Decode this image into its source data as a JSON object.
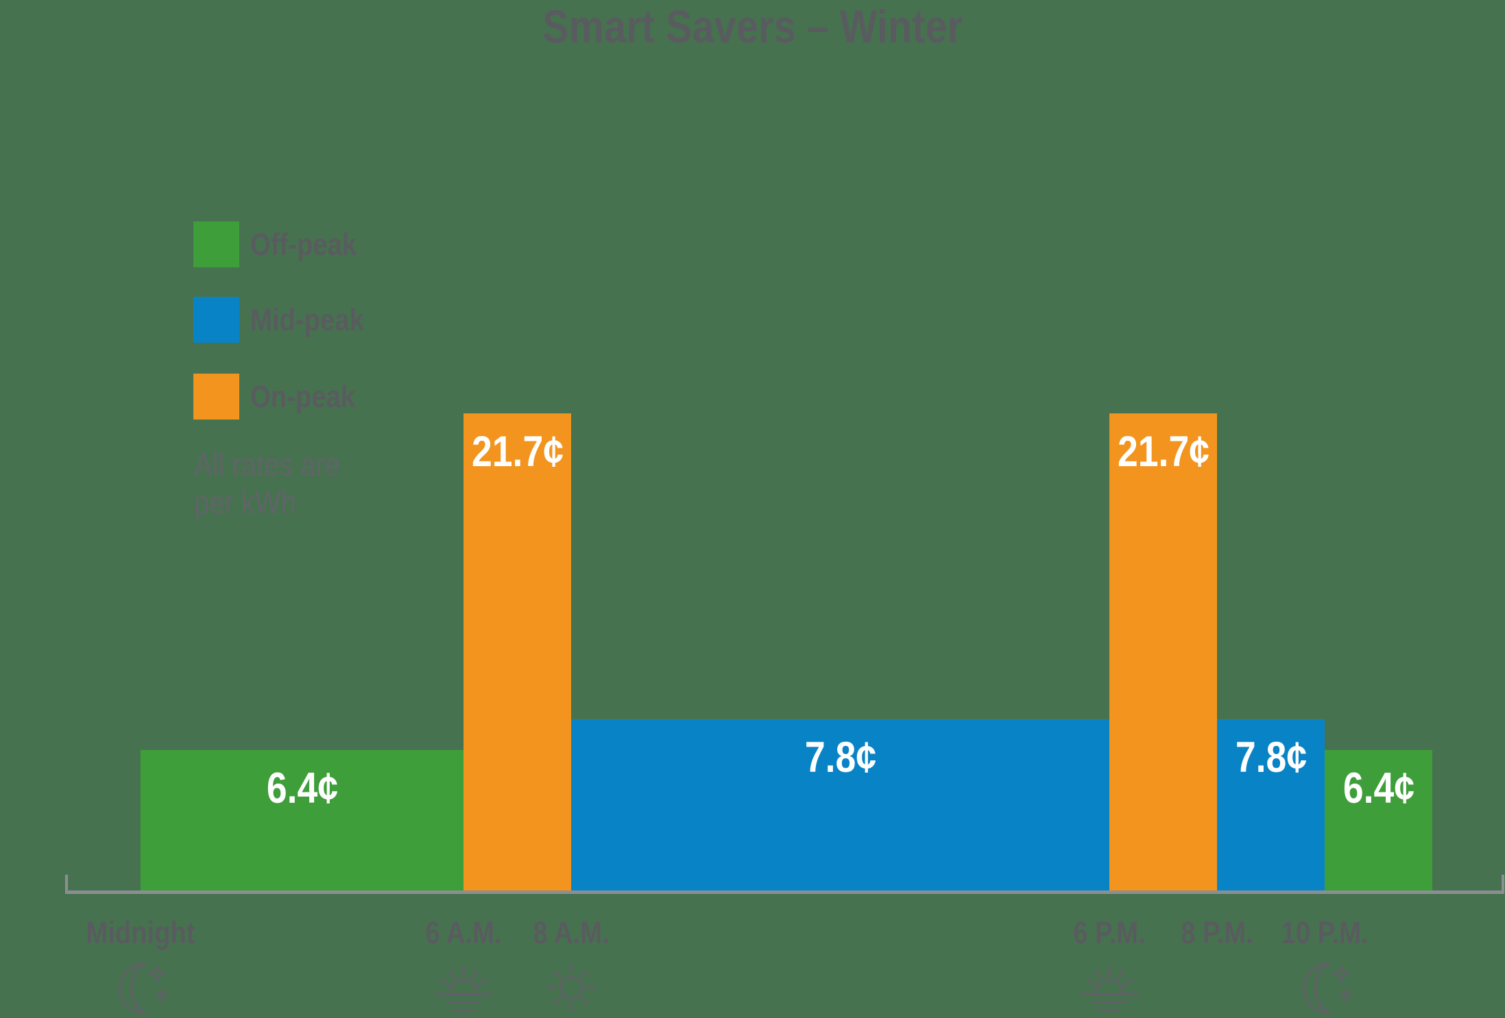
{
  "title": "Smart Savers – Winter",
  "colors": {
    "background": "#47724F",
    "off_peak": "#3E9E3A",
    "mid_peak": "#0884C6",
    "on_peak": "#F2941D",
    "bar_label": "#FFFFFF",
    "text": "#595C5F",
    "note_text": "#606468",
    "axis": "#8B8F92",
    "icon": "#5E6265"
  },
  "legend": {
    "items": [
      {
        "key": "off_peak",
        "label": "Off-peak"
      },
      {
        "key": "mid_peak",
        "label": "Mid-peak"
      },
      {
        "key": "on_peak",
        "label": "On-peak"
      }
    ],
    "note_line1": "All rates are",
    "note_line2": "per kWh"
  },
  "chart_data": {
    "type": "bar",
    "title": "Smart Savers – Winter",
    "unit": "cents per kWh",
    "ylim": [
      0,
      21.7
    ],
    "x_axis": "time of day, linear 24-hour timeline",
    "grid": false,
    "legend_position": "upper-left",
    "bars": [
      {
        "period": "off_peak",
        "period_label": "Off-peak",
        "value": 6.4,
        "label": "6.4¢",
        "start_hour": 0,
        "end_hour": 6,
        "start": "Midnight",
        "end": "6 A.M."
      },
      {
        "period": "on_peak",
        "period_label": "On-peak",
        "value": 21.7,
        "label": "21.7¢",
        "start_hour": 6,
        "end_hour": 8,
        "start": "6 A.M.",
        "end": "8 A.M."
      },
      {
        "period": "mid_peak",
        "period_label": "Mid-peak",
        "value": 7.8,
        "label": "7.8¢",
        "start_hour": 8,
        "end_hour": 18,
        "start": "8 A.M.",
        "end": "6 P.M."
      },
      {
        "period": "on_peak",
        "period_label": "On-peak",
        "value": 21.7,
        "label": "21.7¢",
        "start_hour": 18,
        "end_hour": 20,
        "start": "6 P.M.",
        "end": "8 P.M."
      },
      {
        "period": "mid_peak",
        "period_label": "Mid-peak",
        "value": 7.8,
        "label": "7.8¢",
        "start_hour": 20,
        "end_hour": 22,
        "start": "8 P.M.",
        "end": "10 P.M."
      },
      {
        "period": "off_peak",
        "period_label": "Off-peak",
        "value": 6.4,
        "label": "6.4¢",
        "start_hour": 22,
        "end_hour": 24,
        "start": "10 P.M.",
        "end": "Midnight"
      }
    ],
    "x_ticks": [
      {
        "label": "Midnight",
        "hour": 0,
        "icon": "moon-stars-icon"
      },
      {
        "label": "6 A.M.",
        "hour": 6,
        "icon": "sunrise-icon"
      },
      {
        "label": "8 A.M.",
        "hour": 8,
        "icon": "sun-icon"
      },
      {
        "label": "6 P.M.",
        "hour": 18,
        "icon": "sunset-icon"
      },
      {
        "label": "8 P.M.",
        "hour": 20,
        "icon": null
      },
      {
        "label": "10 P.M.",
        "hour": 22,
        "icon": "moon-stars-icon"
      }
    ]
  }
}
